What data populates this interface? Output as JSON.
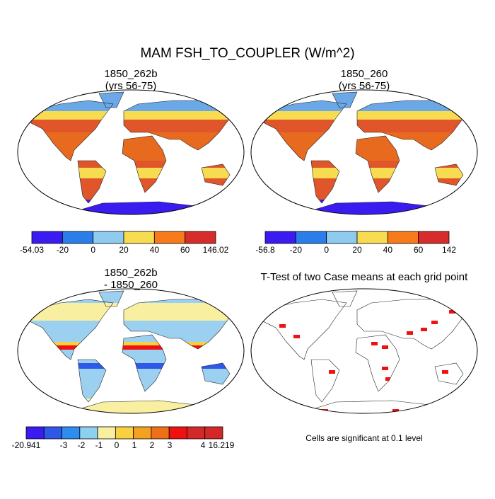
{
  "title": "MAM FSH_TO_COUPLER (W/m^2)",
  "panels": [
    {
      "title": [
        "1850_262b",
        "(yrs 56-75)"
      ],
      "colorbar": {
        "colors": [
          "#3b1cf0",
          "#2b7de9",
          "#8ecbef",
          "#f7dc52",
          "#f77b1a",
          "#d72c2c"
        ],
        "labels": [
          "-54.03",
          "-20",
          "0",
          "20",
          "40",
          "60",
          "146.02"
        ]
      }
    },
    {
      "title": [
        "1850_260",
        "(yrs 56-75)"
      ],
      "colorbar": {
        "colors": [
          "#3b1cf0",
          "#2b7de9",
          "#8ecbef",
          "#f7dc52",
          "#f77b1a",
          "#d72c2c"
        ],
        "labels": [
          "-56.8",
          "-20",
          "0",
          "20",
          "40",
          "60",
          "142"
        ]
      }
    },
    {
      "title": [
        "1850_262b",
        "- 1850_260"
      ],
      "colorbar": {
        "colors": [
          "#3b1cf0",
          "#2e58e8",
          "#2d8ef0",
          "#8ed0f0",
          "#f8f0a0",
          "#f8d040",
          "#f4a020",
          "#f07018",
          "#f01010",
          "#d42828",
          "#d42828"
        ],
        "labels": [
          "-20.941",
          "-3",
          "-2",
          "-1",
          "0",
          "1",
          "2",
          "3",
          "4",
          "16.219"
        ]
      }
    },
    {
      "title": [
        "T-Test of two Case means at each grid point"
      ],
      "note": "Cells are significant at 0.1 level"
    }
  ]
}
